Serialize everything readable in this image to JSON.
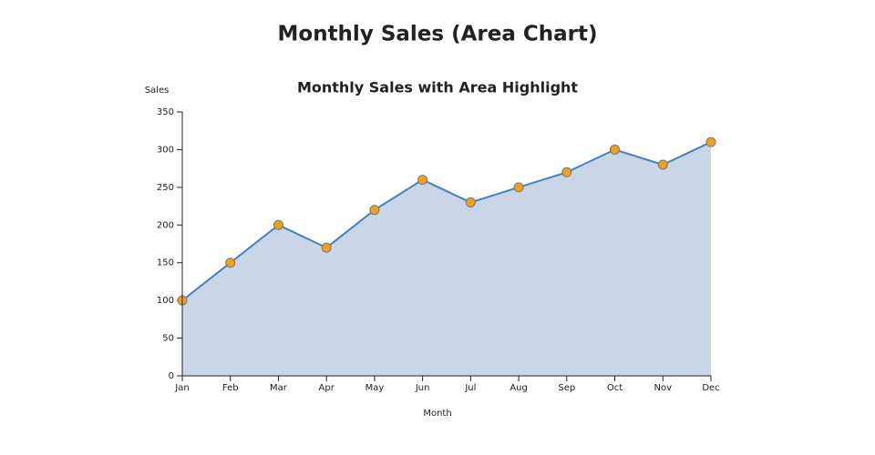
{
  "header": {
    "title": "Monthly Sales (Area Chart)"
  },
  "chart_data": {
    "type": "area",
    "title": "Monthly Sales with Area Highlight",
    "x_label": "Month",
    "y_label": "Sales",
    "categories": [
      "Jan",
      "Feb",
      "Mar",
      "Apr",
      "May",
      "Jun",
      "Jul",
      "Aug",
      "Sep",
      "Oct",
      "Nov",
      "Dec"
    ],
    "values": [
      100,
      150,
      200,
      170,
      220,
      260,
      230,
      250,
      270,
      300,
      280,
      310
    ],
    "color": "#4682b4",
    "fill_color": "#c9d6e8",
    "marker_color": "#f0a01c",
    "ylim": [
      0,
      350
    ],
    "yticks": [
      0,
      50,
      100,
      150,
      200,
      250,
      300,
      350
    ],
    "grid": false
  }
}
